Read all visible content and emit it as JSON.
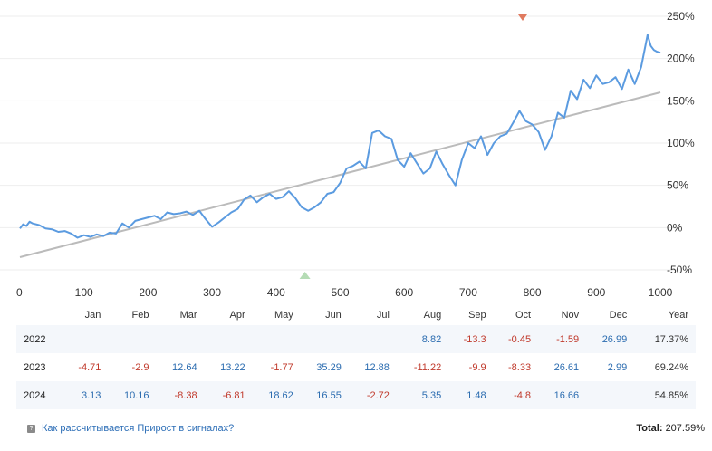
{
  "chart_data": {
    "type": "line",
    "x": [
      0,
      5,
      10,
      15,
      20,
      30,
      40,
      50,
      60,
      70,
      80,
      90,
      100,
      110,
      120,
      130,
      140,
      150,
      160,
      170,
      180,
      190,
      200,
      210,
      220,
      230,
      240,
      250,
      260,
      270,
      280,
      290,
      300,
      310,
      320,
      330,
      340,
      350,
      360,
      370,
      380,
      390,
      400,
      410,
      420,
      430,
      440,
      450,
      460,
      470,
      480,
      490,
      500,
      510,
      520,
      530,
      540,
      550,
      560,
      570,
      580,
      590,
      600,
      610,
      620,
      630,
      640,
      650,
      660,
      670,
      680,
      690,
      700,
      710,
      720,
      730,
      740,
      750,
      760,
      770,
      780,
      790,
      800,
      810,
      820,
      830,
      840,
      850,
      860,
      870,
      880,
      890,
      900,
      910,
      920,
      930,
      940,
      950,
      960,
      970,
      980,
      985,
      990,
      995,
      1000
    ],
    "series": [
      {
        "values": [
          -1,
          4,
          2,
          7,
          5,
          3,
          -1,
          -2,
          -5,
          -4,
          -7,
          -12,
          -9,
          -11,
          -8,
          -10,
          -6,
          -7,
          5,
          0,
          8,
          10,
          12,
          14,
          10,
          18,
          16,
          17,
          19,
          15,
          20,
          10,
          1,
          6,
          12,
          18,
          22,
          33,
          38,
          30,
          36,
          40,
          34,
          36,
          43,
          35,
          24,
          20,
          24,
          30,
          40,
          42,
          53,
          70,
          73,
          78,
          70,
          112,
          115,
          108,
          105,
          80,
          72,
          88,
          76,
          64,
          70,
          90,
          75,
          62,
          50,
          80,
          100,
          94,
          108,
          86,
          100,
          108,
          111,
          124,
          138,
          126,
          122,
          113,
          92,
          108,
          136,
          130,
          162,
          152,
          175,
          165,
          180,
          170,
          172,
          178,
          164,
          187,
          170,
          190,
          228,
          215,
          210,
          208,
          207
        ],
        "color": "#5b9be0"
      },
      {
        "values": [
          -35,
          160
        ],
        "x": [
          0,
          1000
        ],
        "color": "#bbbbbb"
      }
    ],
    "ylim": [
      -55,
      265
    ],
    "xlim": [
      0,
      1000
    ],
    "yticks": [
      "250%",
      "200%",
      "150%",
      "100%",
      "50%",
      "0%",
      "-50%"
    ],
    "ytick_values": [
      250,
      200,
      150,
      100,
      50,
      0,
      -50
    ],
    "xticks": [
      "0",
      "100",
      "200",
      "300",
      "400",
      "500",
      "600",
      "700",
      "800",
      "900",
      "1000"
    ],
    "xtick_values": [
      0,
      100,
      200,
      300,
      400,
      500,
      600,
      700,
      800,
      900,
      1000
    ],
    "markers": [
      {
        "kind": "max",
        "x": 785,
        "color": "#e07a5f"
      },
      {
        "kind": "min",
        "x": 445,
        "color": "#b5dcb5"
      }
    ],
    "grid": true
  },
  "table": {
    "headers": [
      "",
      "Jan",
      "Feb",
      "Mar",
      "Apr",
      "May",
      "Jun",
      "Jul",
      "Aug",
      "Sep",
      "Oct",
      "Nov",
      "Dec",
      "Year"
    ],
    "rows": [
      {
        "year": "2022",
        "cells": [
          "",
          "",
          "",
          "",
          "",
          "",
          "",
          "8.82",
          "-13.3",
          "-0.45",
          "-1.59",
          "26.99"
        ],
        "total": "17.37%"
      },
      {
        "year": "2023",
        "cells": [
          "-4.71",
          "-2.9",
          "12.64",
          "13.22",
          "-1.77",
          "35.29",
          "12.88",
          "-11.22",
          "-9.9",
          "-8.33",
          "26.61",
          "2.99"
        ],
        "total": "69.24%"
      },
      {
        "year": "2024",
        "cells": [
          "3.13",
          "10.16",
          "-8.38",
          "-6.81",
          "18.62",
          "16.55",
          "-2.72",
          "5.35",
          "1.48",
          "-4.8",
          "16.66",
          ""
        ],
        "total": "54.85%"
      }
    ]
  },
  "footer": {
    "link": "Как рассчитывается Прирост в сигналах?",
    "total_label": "Total:",
    "total_value": "207.59%"
  }
}
